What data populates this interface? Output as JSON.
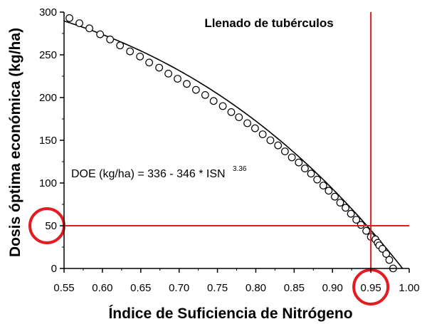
{
  "chart_data": {
    "type": "scatter",
    "title": "Llenado de tubérculos",
    "xlabel": "Índice de Suficiencia de Nitrógeno",
    "ylabel": "Dosis óptima económica (kg/ha)",
    "xlim": [
      0.55,
      1.0
    ],
    "ylim": [
      0,
      300
    ],
    "xticks": [
      "0.55",
      "0.60",
      "0.65",
      "0.70",
      "0.75",
      "0.80",
      "0.85",
      "0.90",
      "0.95",
      "1.00"
    ],
    "yticks": [
      "0",
      "50",
      "100",
      "150",
      "200",
      "250",
      "300"
    ],
    "grid": false,
    "equation": {
      "text": "DOE (kg/ha) = 336 - 346 * ISN",
      "exponent": "3.36",
      "intercept": 336,
      "coefficient": 346,
      "power": 3.36
    },
    "reference_lines": {
      "vertical_x": 0.95,
      "horizontal_y": 50,
      "color": "#e31b23"
    },
    "highlight_circles": [
      {
        "axis": "y",
        "value": 50
      },
      {
        "axis": "x",
        "value": 0.95
      }
    ],
    "series": [
      {
        "points": [
          [
            0.557,
            293
          ],
          [
            0.57,
            287
          ],
          [
            0.583,
            281
          ],
          [
            0.597,
            274
          ],
          [
            0.61,
            268
          ],
          [
            0.623,
            261
          ],
          [
            0.636,
            254
          ],
          [
            0.649,
            248
          ],
          [
            0.661,
            241
          ],
          [
            0.674,
            235
          ],
          [
            0.686,
            228
          ],
          [
            0.698,
            222
          ],
          [
            0.71,
            216
          ],
          [
            0.722,
            209
          ],
          [
            0.734,
            203
          ],
          [
            0.745,
            196
          ],
          [
            0.757,
            190
          ],
          [
            0.768,
            183
          ],
          [
            0.778,
            177
          ],
          [
            0.789,
            170
          ],
          [
            0.799,
            164
          ],
          [
            0.809,
            157
          ],
          [
            0.819,
            150
          ],
          [
            0.829,
            144
          ],
          [
            0.838,
            137
          ],
          [
            0.847,
            130
          ],
          [
            0.856,
            124
          ],
          [
            0.864,
            117
          ],
          [
            0.872,
            111
          ],
          [
            0.88,
            104
          ],
          [
            0.888,
            97
          ],
          [
            0.895,
            91
          ],
          [
            0.903,
            84
          ],
          [
            0.91,
            77
          ],
          [
            0.917,
            71
          ],
          [
            0.924,
            64
          ],
          [
            0.931,
            57
          ],
          [
            0.937,
            51
          ],
          [
            0.944,
            44
          ],
          [
            0.95,
            37
          ],
          [
            0.956,
            34
          ],
          [
            0.959,
            30
          ],
          [
            0.961,
            27
          ],
          [
            0.965,
            23
          ],
          [
            0.97,
            17
          ],
          [
            0.974,
            10
          ],
          [
            0.979,
            0
          ]
        ]
      }
    ]
  }
}
